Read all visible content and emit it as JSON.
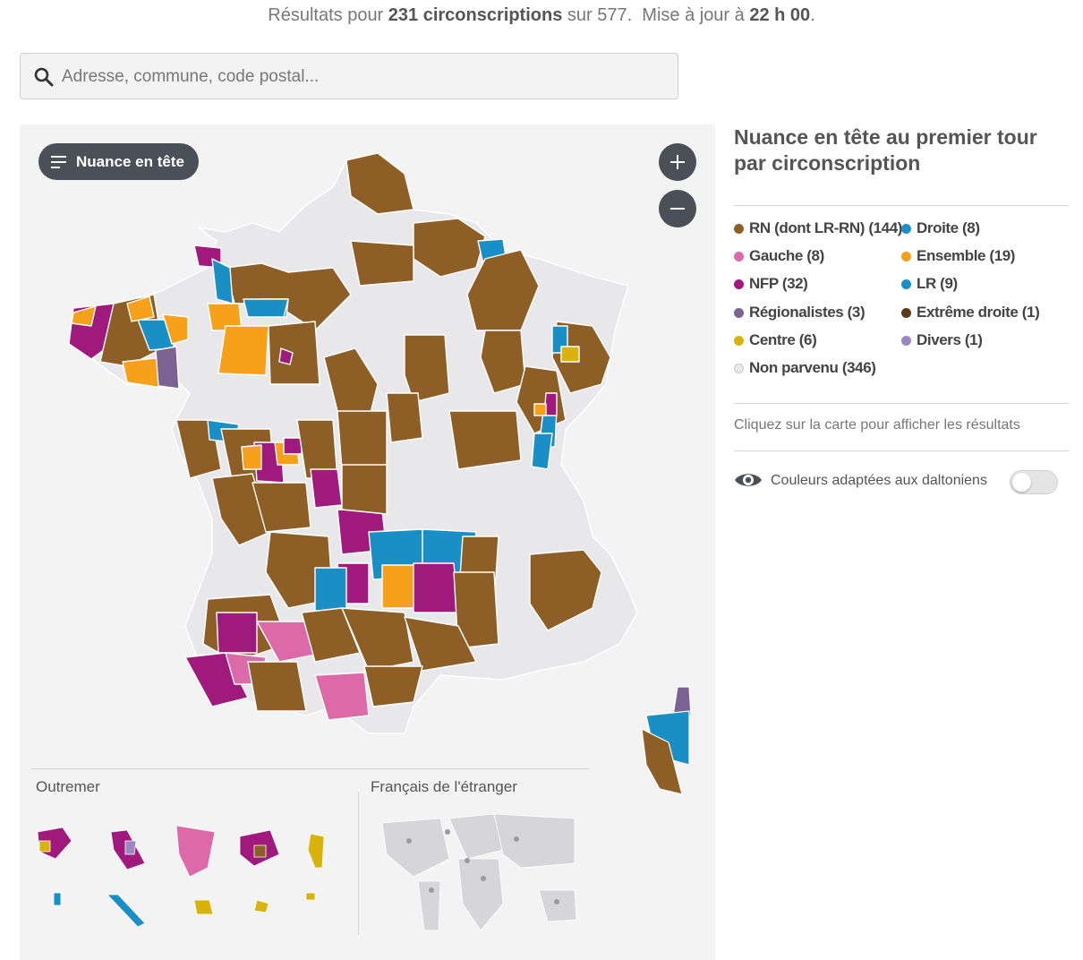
{
  "status": {
    "prefix": "Résultats pour",
    "count_bold": "231 circonscriptions",
    "total": "sur 577.",
    "update_prefix": "Mise à jour à",
    "time_bold": "22 h 00",
    "suffix": "."
  },
  "search": {
    "placeholder": "Adresse, commune, code postal..."
  },
  "map": {
    "mode_pill": "Nuance en tête",
    "zoom_in_icon": "plus-icon",
    "zoom_out_icon": "minus-icon",
    "outremer_label": "Outremer",
    "abroad_label": "Français de l'étranger"
  },
  "side": {
    "title": "Nuance en tête au premier tour par circonscription",
    "legend": [
      {
        "label": "RN (dont LR-RN) (144)",
        "color": "#8d5e25"
      },
      {
        "label": "Droite (8)",
        "color": "#1a8fc6"
      },
      {
        "label": "Gauche (8)",
        "color": "#dd6aa8"
      },
      {
        "label": "Ensemble (19)",
        "color": "#f7a11a"
      },
      {
        "label": "NFP (32)",
        "color": "#a01a7d"
      },
      {
        "label": "LR (9)",
        "color": "#1a8fc6"
      },
      {
        "label": "Régionalistes (3)",
        "color": "#7a6393"
      },
      {
        "label": "Extrême droite (1)",
        "color": "#5a3a1a"
      },
      {
        "label": "Centre (6)",
        "color": "#d8b30e"
      },
      {
        "label": "Divers (1)",
        "color": "#9c86c4"
      },
      {
        "label": "Non parvenu (346)",
        "color": "#e8e8ea"
      }
    ],
    "hint": "Cliquez sur la carte pour afficher les résultats",
    "colorblind_label": "Couleurs adaptées aux daltoniens",
    "colorblind_icon": "eye-icon"
  }
}
